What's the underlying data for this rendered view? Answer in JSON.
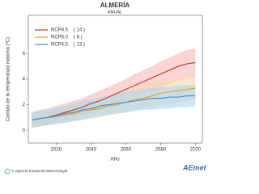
{
  "chart_data": {
    "type": "band-line",
    "title": "ALMERÍA",
    "subtitle": "ANUAL",
    "x_label": "Año",
    "y_label": "Cambio de la temperatura máxima (ºC)",
    "x": [
      2006,
      2010,
      2015,
      2020,
      2025,
      2030,
      2035,
      2040,
      2045,
      2050,
      2055,
      2060,
      2065,
      2070,
      2075,
      2080,
      2085,
      2090,
      2095,
      2100
    ],
    "series": [
      {
        "name": "RCP8.5",
        "models": "( 14 )",
        "color": "#c0392b",
        "band_color": "#f5b7b5",
        "values": [
          0.8,
          0.9,
          1.0,
          1.2,
          1.4,
          1.6,
          1.8,
          2.1,
          2.3,
          2.6,
          2.9,
          3.2,
          3.5,
          3.8,
          4.1,
          4.4,
          4.7,
          5.0,
          5.2,
          5.3
        ],
        "band_low": [
          0.2,
          0.3,
          0.4,
          0.6,
          0.8,
          1.0,
          1.2,
          1.4,
          1.6,
          1.9,
          2.1,
          2.4,
          2.6,
          2.9,
          3.1,
          3.4,
          3.6,
          3.9,
          4.1,
          4.2
        ],
        "band_high": [
          1.4,
          1.6,
          1.7,
          1.9,
          2.1,
          2.3,
          2.5,
          2.8,
          3.1,
          3.4,
          3.7,
          4.0,
          4.4,
          4.7,
          5.0,
          5.4,
          5.7,
          6.0,
          6.3,
          6.4
        ]
      },
      {
        "name": "RCP6.0",
        "models": "( 6 )",
        "color": "#e89a2e",
        "band_color": "#f9d9a6",
        "values": [
          0.8,
          0.9,
          1.0,
          1.1,
          1.2,
          1.3,
          1.5,
          1.6,
          1.7,
          1.9,
          2.0,
          2.2,
          2.4,
          2.5,
          2.7,
          2.9,
          3.0,
          3.1,
          3.2,
          3.3
        ],
        "band_low": [
          0.2,
          0.3,
          0.4,
          0.5,
          0.6,
          0.7,
          0.8,
          0.9,
          1.0,
          1.2,
          1.3,
          1.4,
          1.6,
          1.7,
          1.8,
          2.0,
          2.1,
          2.2,
          2.3,
          2.4
        ],
        "band_high": [
          1.4,
          1.5,
          1.6,
          1.7,
          1.8,
          2.0,
          2.1,
          2.3,
          2.4,
          2.6,
          2.8,
          3.0,
          3.2,
          3.4,
          3.6,
          3.8,
          3.9,
          4.1,
          4.2,
          4.3
        ]
      },
      {
        "name": "RCP4.5",
        "models": "( 13 )",
        "color": "#3a8fd0",
        "band_color": "#a9d6f2",
        "values": [
          0.8,
          0.9,
          1.0,
          1.1,
          1.3,
          1.4,
          1.6,
          1.7,
          1.9,
          2.0,
          2.1,
          2.2,
          2.3,
          2.4,
          2.5,
          2.5,
          2.6,
          2.6,
          2.7,
          2.7
        ],
        "band_low": [
          0.2,
          0.3,
          0.4,
          0.5,
          0.6,
          0.7,
          0.8,
          1.0,
          1.1,
          1.2,
          1.3,
          1.4,
          1.5,
          1.6,
          1.6,
          1.7,
          1.7,
          1.8,
          1.8,
          1.9
        ],
        "band_high": [
          1.4,
          1.5,
          1.6,
          1.8,
          1.9,
          2.1,
          2.3,
          2.4,
          2.6,
          2.7,
          2.9,
          3.0,
          3.1,
          3.2,
          3.3,
          3.4,
          3.4,
          3.5,
          3.5,
          3.6
        ]
      }
    ],
    "xlim": [
      2004,
      2104
    ],
    "xticks": [
      2020,
      2040,
      2060,
      2080,
      2100
    ],
    "ylim": [
      -1,
      9
    ],
    "yticks": [
      0,
      2,
      4,
      6
    ],
    "legend": "upper-left",
    "footer": "© Agencia Estatal de Meteorología",
    "logo": "AEmet"
  }
}
